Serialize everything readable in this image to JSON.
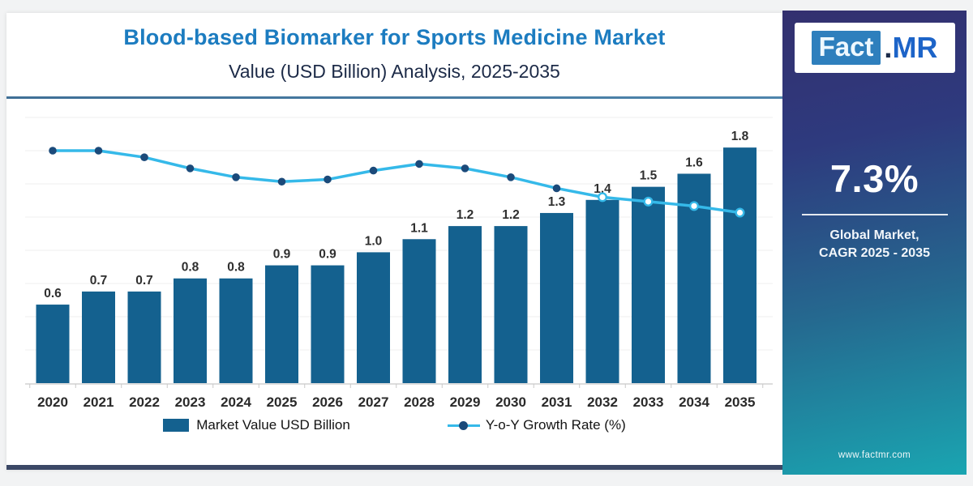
{
  "header": {
    "title": "Blood-based Biomarker for Sports Medicine Market",
    "subtitle": "Value (USD Billion) Analysis, 2025-2035"
  },
  "sidebar": {
    "logo": {
      "fact": "Fact",
      "dot": ".",
      "mr": "MR"
    },
    "cagr_value": "7.3%",
    "cagr_caption_line1": "Global Market,",
    "cagr_caption_line2": "CAGR 2025 - 2035",
    "website": "www.factmr.com"
  },
  "legend": {
    "bar_label": "Market Value USD Billion",
    "line_label": "Y-o-Y Growth Rate (%)"
  },
  "colors": {
    "title_blue": "#1c7cc0",
    "subtitle_navy": "#1c2a47",
    "bar_blue": "#14618f",
    "line_light_blue": "#35b9e9",
    "marker_dark_blue": "#1b4a7a",
    "gridline": "#efefef",
    "axis_line": "#d2d2d2",
    "tick": "#c9c9c9",
    "bar_label_text": "#2f2f2f",
    "x_label_text": "#2a2a2a",
    "sidebar_top": "#33306f",
    "sidebar_bottom": "#1aa5b1",
    "bottom_strip": "#3b4866",
    "header_divider": "#4a7fa0"
  },
  "chart_data": {
    "type": "bar",
    "title": "Blood-based Biomarker for Sports Medicine Market",
    "subtitle": "Value (USD Billion) Analysis, 2025-2035",
    "categories": [
      "2020",
      "2021",
      "2022",
      "2023",
      "2024",
      "2025",
      "2026",
      "2027",
      "2028",
      "2029",
      "2030",
      "2031",
      "2032",
      "2033",
      "2034",
      "2035"
    ],
    "series": [
      {
        "name": "Market Value USD Billion",
        "type": "bar",
        "color": "#14618f",
        "ylim": [
          0,
          2
        ],
        "data_labels_shown": true,
        "values": [
          0.6,
          0.7,
          0.7,
          0.8,
          0.8,
          0.9,
          0.9,
          1.0,
          1.1,
          1.2,
          1.2,
          1.3,
          1.4,
          1.5,
          1.6,
          1.8
        ]
      },
      {
        "name": "Y-o-Y Growth Rate (%)",
        "type": "line",
        "color": "#35b9e9",
        "marker_color": "#1b4a7a",
        "ylim": [
          0,
          12
        ],
        "values_are_estimated_from_pixels": true,
        "values": [
          10.5,
          10.5,
          10.2,
          9.7,
          9.3,
          9.1,
          9.2,
          9.6,
          9.9,
          9.7,
          9.3,
          8.8,
          8.4,
          8.2,
          8.0,
          7.7
        ],
        "hollow_marker_years": [
          "2032",
          "2033",
          "2034",
          "2035"
        ]
      }
    ],
    "y_axis_labels_shown": false,
    "grid": "horizontal-faint",
    "legend_position": "bottom"
  }
}
